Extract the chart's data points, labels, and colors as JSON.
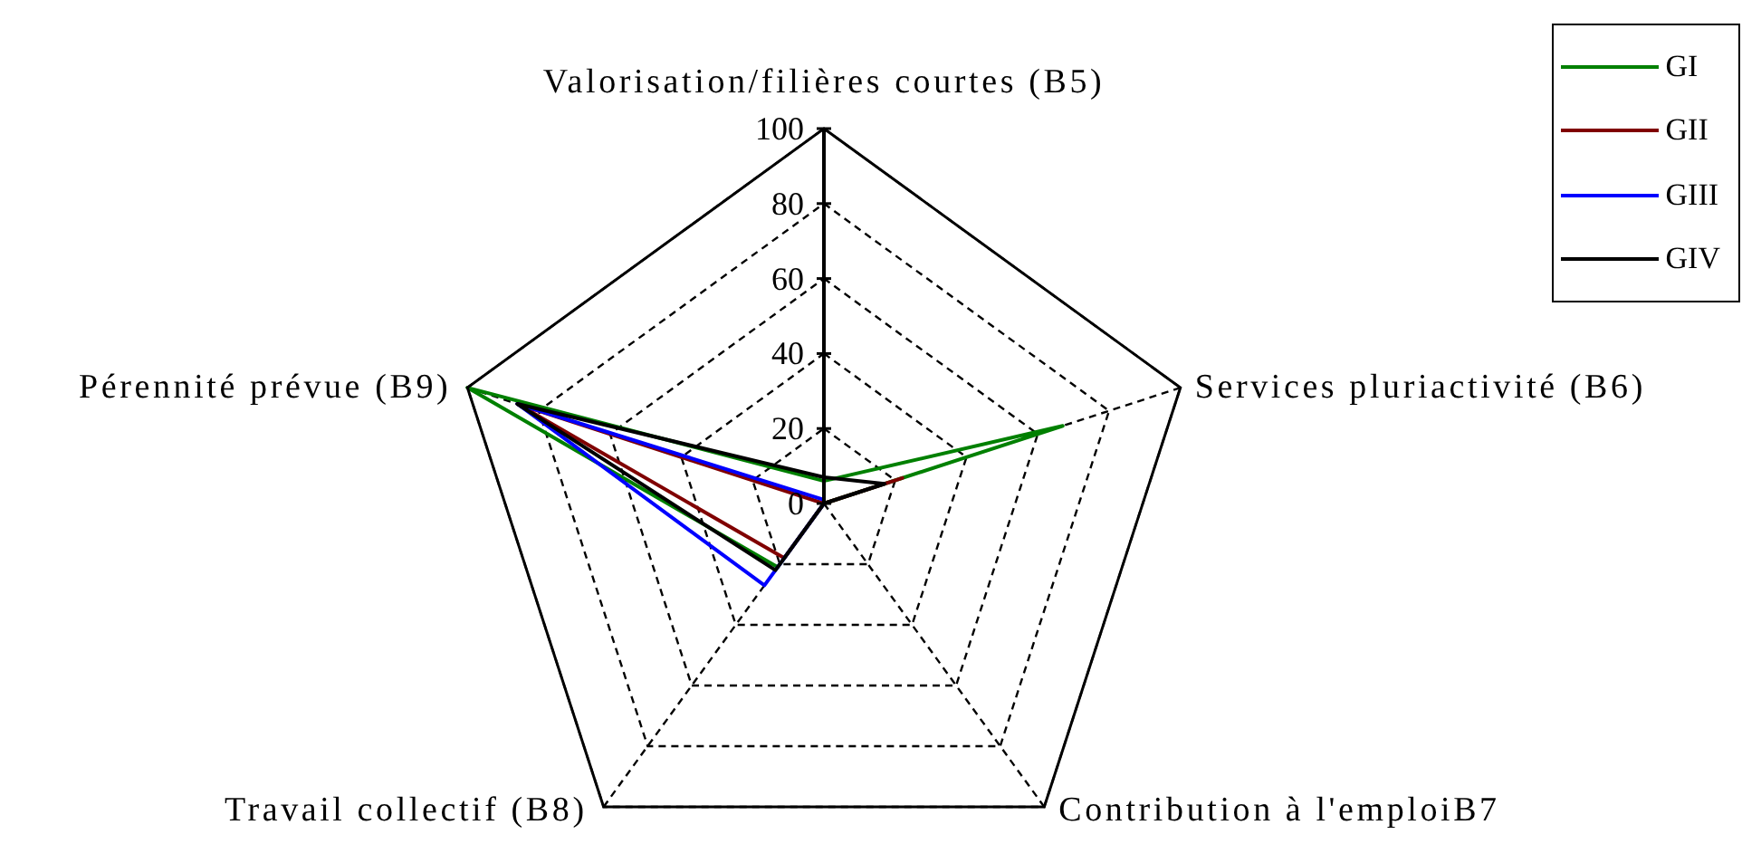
{
  "chart_data": {
    "type": "radar",
    "categories": [
      "Valorisation/filières courtes (B5)",
      "Services pluriactivité (B6)",
      "Contribution à l'emploiB7",
      "Travail collectif (B8)",
      "Pérennité prévue (B9)"
    ],
    "series": [
      {
        "name": "GI",
        "color": "#008000",
        "values": [
          6,
          67,
          0,
          21,
          100
        ]
      },
      {
        "name": "GII",
        "color": "#800000",
        "values": [
          0,
          22,
          0,
          18,
          86
        ]
      },
      {
        "name": "GIII",
        "color": "#0000ff",
        "values": [
          1,
          0,
          0,
          27,
          86
        ]
      },
      {
        "name": "GIV",
        "color": "#000000",
        "values": [
          7,
          17,
          0,
          22,
          86
        ]
      }
    ],
    "ylim": [
      0,
      100
    ],
    "yticks": [
      0,
      20,
      40,
      60,
      80,
      100
    ],
    "grid": true,
    "legend": "top right"
  }
}
